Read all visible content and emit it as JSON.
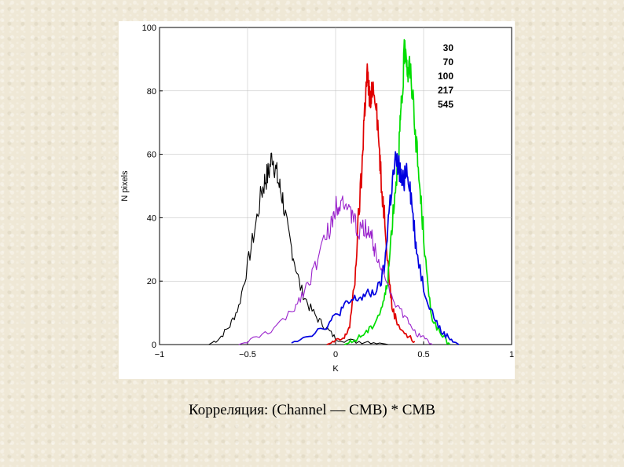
{
  "caption": "Корреляция: (Channel — CMB) * CMB",
  "chart_data": {
    "type": "line",
    "title": "",
    "xlabel": "K",
    "ylabel": "N pixels",
    "xlim": [
      -1,
      1
    ],
    "ylim": [
      0,
      100
    ],
    "xticks": [
      -1,
      -0.5,
      0,
      0.5,
      1
    ],
    "xtick_labels": [
      "−1",
      "−0.5",
      "0",
      "0.5",
      "1"
    ],
    "yticks": [
      0,
      20,
      40,
      60,
      80,
      100
    ],
    "ytick_labels": [
      "0",
      "20",
      "40",
      "60",
      "80",
      "100"
    ],
    "legend_position": "top-right",
    "series": [
      {
        "name": "30",
        "color": "#000000",
        "x": [
          -0.72,
          -0.66,
          -0.6,
          -0.55,
          -0.5,
          -0.46,
          -0.42,
          -0.4,
          -0.38,
          -0.36,
          -0.34,
          -0.32,
          -0.3,
          -0.27,
          -0.24,
          -0.2,
          -0.15,
          -0.1,
          -0.05,
          0.0,
          0.1,
          0.2,
          0.3
        ],
        "y": [
          0,
          2,
          6,
          12,
          25,
          36,
          48,
          52,
          54,
          60,
          55,
          50,
          46,
          35,
          28,
          18,
          12,
          8,
          5,
          2,
          1,
          1,
          0
        ]
      },
      {
        "name": "70",
        "color": "#e00000",
        "x": [
          -0.05,
          0.0,
          0.05,
          0.08,
          0.11,
          0.13,
          0.15,
          0.16,
          0.17,
          0.18,
          0.19,
          0.2,
          0.21,
          0.23,
          0.25,
          0.26,
          0.28,
          0.3,
          0.32,
          0.35,
          0.4,
          0.45
        ],
        "y": [
          0,
          1,
          2,
          6,
          20,
          40,
          55,
          70,
          78,
          85,
          80,
          75,
          82,
          78,
          60,
          50,
          40,
          24,
          12,
          7,
          3,
          1
        ]
      },
      {
        "name": "100",
        "color": "#00dd00",
        "x": [
          0.05,
          0.1,
          0.15,
          0.2,
          0.25,
          0.28,
          0.3,
          0.32,
          0.34,
          0.36,
          0.37,
          0.38,
          0.39,
          0.4,
          0.41,
          0.42,
          0.44,
          0.46,
          0.48,
          0.5,
          0.52,
          0.55,
          0.6,
          0.65
        ],
        "y": [
          0,
          1,
          3,
          5,
          10,
          15,
          22,
          38,
          50,
          62,
          72,
          78,
          92,
          94,
          85,
          88,
          78,
          62,
          48,
          35,
          20,
          8,
          3,
          0
        ]
      },
      {
        "name": "217",
        "color": "#0000e0",
        "x": [
          -0.25,
          -0.15,
          -0.05,
          0.0,
          0.05,
          0.1,
          0.15,
          0.2,
          0.25,
          0.28,
          0.3,
          0.32,
          0.34,
          0.36,
          0.38,
          0.4,
          0.42,
          0.44,
          0.46,
          0.5,
          0.55,
          0.6,
          0.65,
          0.7
        ],
        "y": [
          1,
          3,
          6,
          9,
          12,
          14,
          15,
          16,
          18,
          25,
          40,
          50,
          57,
          56,
          50,
          56,
          52,
          40,
          30,
          18,
          10,
          4,
          2,
          0
        ]
      },
      {
        "name": "545",
        "color": "#9a22cc",
        "x": [
          -0.55,
          -0.45,
          -0.35,
          -0.25,
          -0.2,
          -0.15,
          -0.1,
          -0.05,
          -0.02,
          0.0,
          0.02,
          0.05,
          0.08,
          0.1,
          0.12,
          0.15,
          0.18,
          0.2,
          0.22,
          0.25,
          0.3,
          0.35,
          0.4,
          0.45,
          0.5,
          0.55
        ],
        "y": [
          0,
          2,
          5,
          10,
          15,
          20,
          27,
          35,
          38,
          44,
          45,
          46,
          40,
          42,
          35,
          36,
          37,
          35,
          30,
          27,
          18,
          12,
          8,
          4,
          2,
          0
        ]
      }
    ]
  }
}
